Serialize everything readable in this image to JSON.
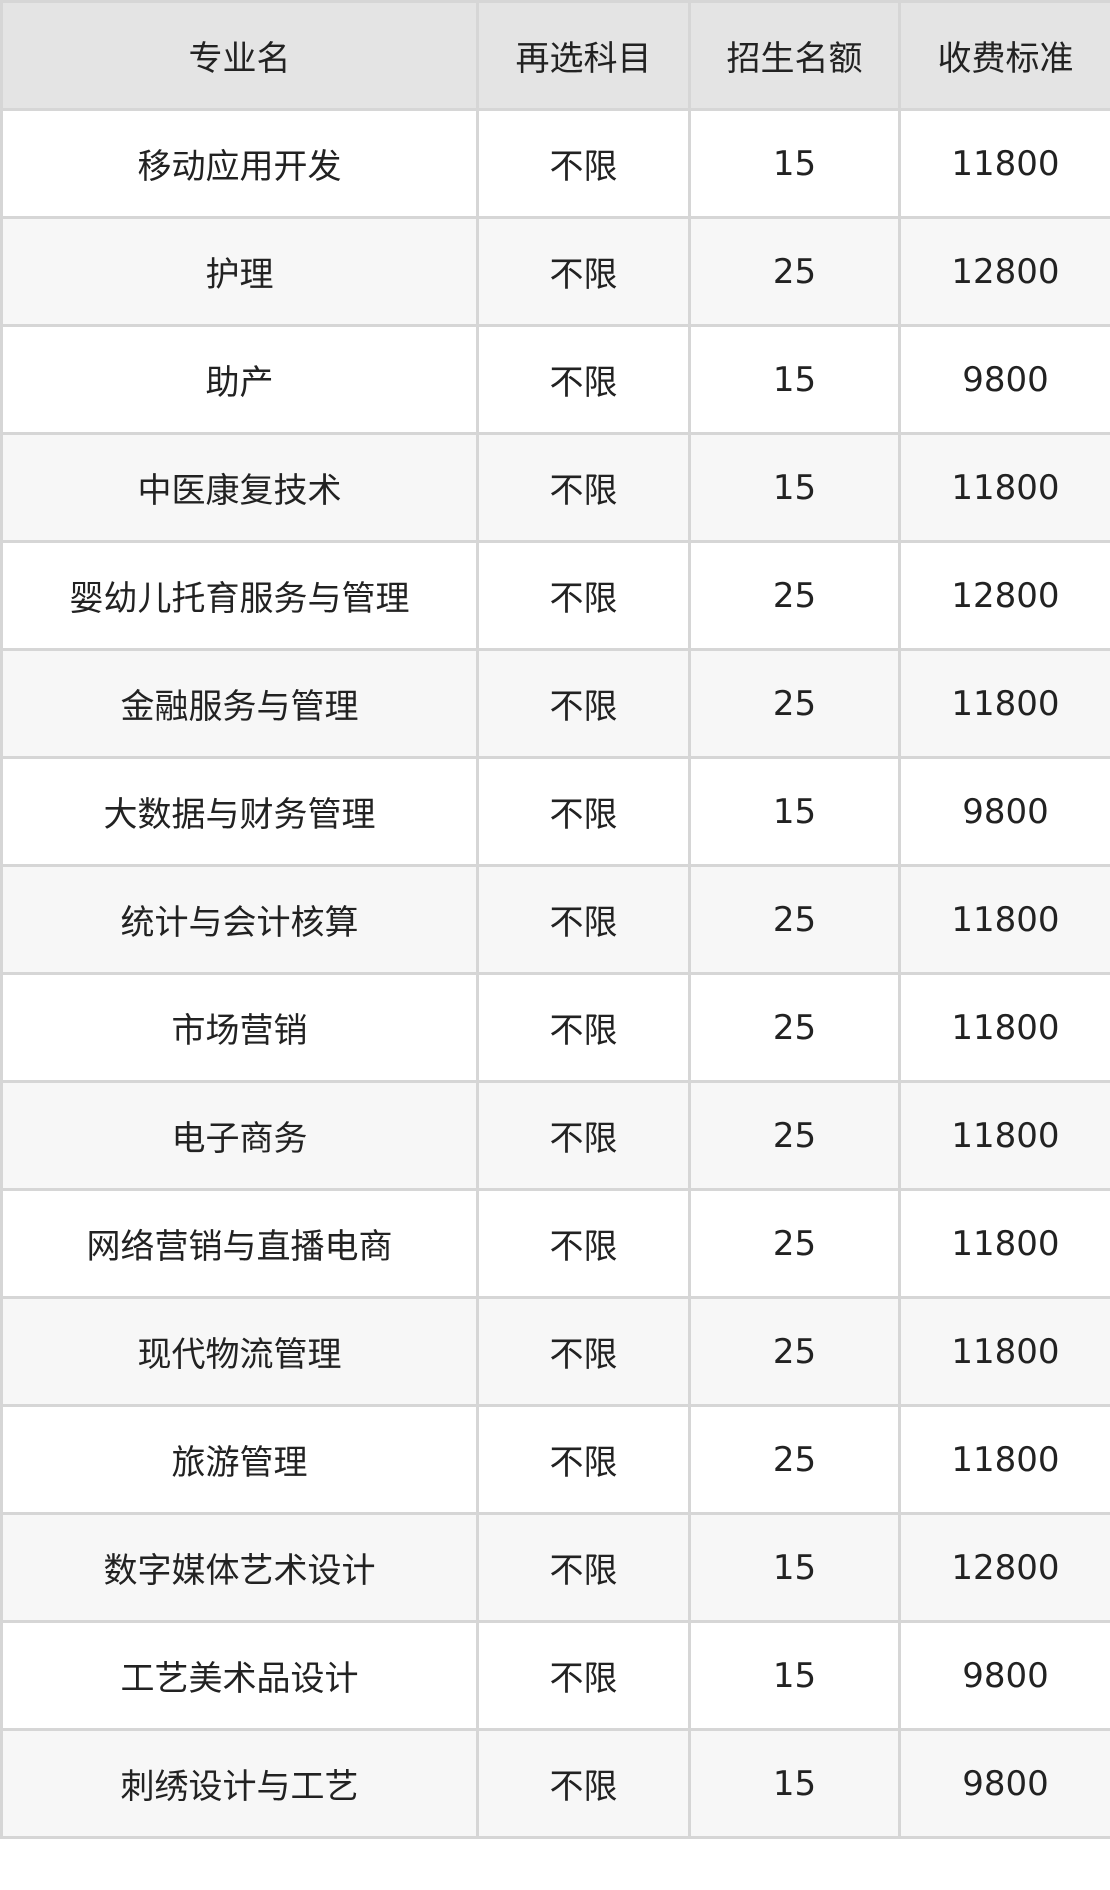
{
  "headers": [
    "专业名",
    "再选科目",
    "招生名额",
    "收费标准"
  ],
  "rows": [
    [
      "移动应用开发",
      "不限",
      "15",
      "11800"
    ],
    [
      "护理",
      "不限",
      "25",
      "12800"
    ],
    [
      "助产",
      "不限",
      "15",
      "9800"
    ],
    [
      "中医康复技术",
      "不限",
      "15",
      "11800"
    ],
    [
      "婴幼儿托育服务与管理",
      "不限",
      "25",
      "12800"
    ],
    [
      "金融服务与管理",
      "不限",
      "25",
      "11800"
    ],
    [
      "大数据与财务管理",
      "不限",
      "15",
      "9800"
    ],
    [
      "统计与会计核算",
      "不限",
      "25",
      "11800"
    ],
    [
      "市场营销",
      "不限",
      "25",
      "11800"
    ],
    [
      "电子商务",
      "不限",
      "25",
      "11800"
    ],
    [
      "网络营销与直播电商",
      "不限",
      "25",
      "11800"
    ],
    [
      "现代物流管理",
      "不限",
      "25",
      "11800"
    ],
    [
      "旅游管理",
      "不限",
      "25",
      "11800"
    ],
    [
      "数字媒体艺术设计",
      "不限",
      "15",
      "12800"
    ],
    [
      "工艺美术品设计",
      "不限",
      "15",
      "9800"
    ],
    [
      "刺绣设计与工艺",
      "不限",
      "15",
      "9800"
    ]
  ]
}
